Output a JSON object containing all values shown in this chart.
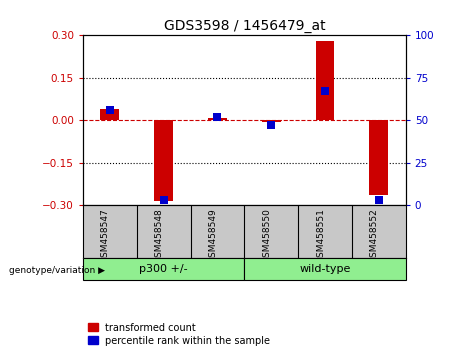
{
  "title": "GDS3598 / 1456479_at",
  "samples": [
    "GSM458547",
    "GSM458548",
    "GSM458549",
    "GSM458550",
    "GSM458551",
    "GSM458552"
  ],
  "red_values": [
    0.04,
    -0.285,
    0.01,
    -0.005,
    0.28,
    -0.265
  ],
  "blue_values_pct": [
    56,
    3,
    52,
    47,
    67,
    3
  ],
  "group1_label": "p300 +/-",
  "group1_samples": [
    0,
    1,
    2
  ],
  "group2_label": "wild-type",
  "group2_samples": [
    3,
    4,
    5
  ],
  "group_label": "genotype/variation",
  "ylim_left": [
    -0.3,
    0.3
  ],
  "ylim_right": [
    0,
    100
  ],
  "yticks_left": [
    -0.3,
    -0.15,
    0,
    0.15,
    0.3
  ],
  "yticks_right": [
    0,
    25,
    50,
    75,
    100
  ],
  "hlines_dotted": [
    -0.15,
    0.15
  ],
  "hline_dashed": 0,
  "red_color": "#CC0000",
  "blue_color": "#0000CC",
  "bar_width": 0.35,
  "blue_marker_size": 6,
  "legend_items": [
    "transformed count",
    "percentile rank within the sample"
  ],
  "background_color": "#ffffff",
  "tick_area_bg": "#c8c8c8",
  "group_bg": "#90EE90"
}
